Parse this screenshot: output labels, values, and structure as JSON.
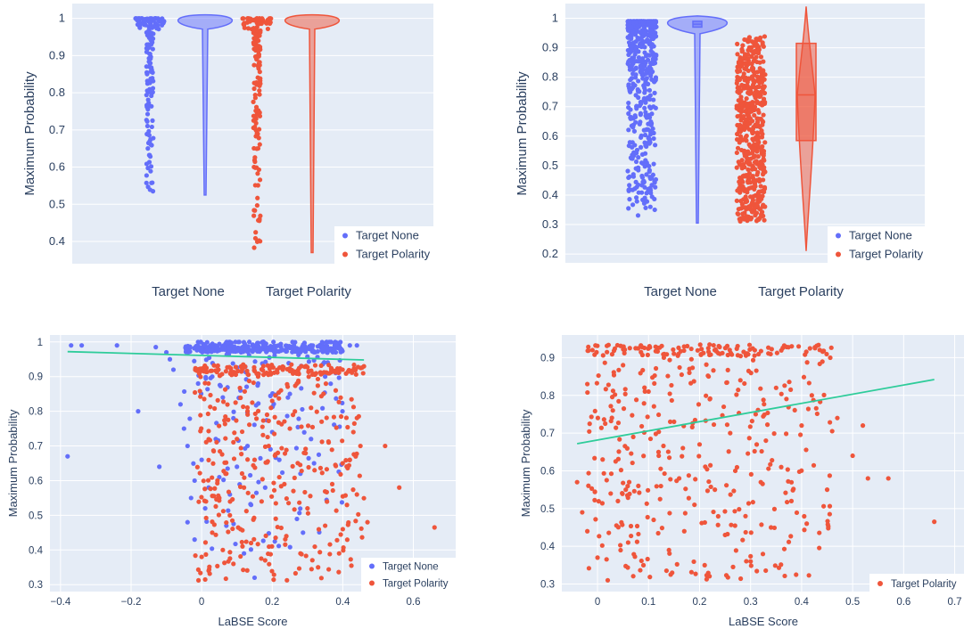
{
  "colors": {
    "target_none": "#636efa",
    "target_polarity": "#ef553b",
    "trend": "#2ecc9a",
    "plot_bg": "#e5ecf6",
    "grid": "#ffffff",
    "legend_bg": "#ffffff"
  },
  "chart_data": [
    {
      "type": "violin",
      "panel": "top-left",
      "ylabel": "Maximum Probability",
      "ylim": [
        0.34,
        1.04
      ],
      "yticks": [
        0.4,
        0.5,
        0.6,
        0.7,
        0.8,
        0.9,
        1
      ],
      "categories": [
        "Target None",
        "Target Polarity"
      ],
      "legend": [
        "Target None",
        "Target Polarity"
      ],
      "legend_position": "bottom-right",
      "series": [
        {
          "name": "Target None",
          "min": 0.525,
          "median": 0.997,
          "max": 1.0,
          "box": false
        },
        {
          "name": "Target Polarity",
          "min": 0.37,
          "median": 0.995,
          "max": 1.0,
          "box": false
        }
      ]
    },
    {
      "type": "violin",
      "panel": "top-right",
      "ylabel": "Maximum Probability",
      "ylim": [
        0.17,
        1.05
      ],
      "yticks": [
        0.2,
        0.3,
        0.4,
        0.5,
        0.6,
        0.7,
        0.8,
        0.9,
        1
      ],
      "categories": [
        "Target None",
        "Target Polarity"
      ],
      "legend": [
        "Target None",
        "Target Polarity"
      ],
      "legend_position": "bottom-right",
      "series": [
        {
          "name": "Target None",
          "min": 0.305,
          "q1": 0.97,
          "median": 0.98,
          "q3": 0.99,
          "max": 0.99,
          "box": true
        },
        {
          "name": "Target Polarity",
          "min": 0.21,
          "q1": 0.585,
          "median": 0.74,
          "q3": 0.915,
          "max": 1.04,
          "box": true
        }
      ]
    },
    {
      "type": "scatter",
      "panel": "bottom-left",
      "xlabel": "LaBSE Score",
      "ylabel": "Maximum Probability",
      "xlim": [
        -0.43,
        0.72
      ],
      "ylim": [
        0.28,
        1.02
      ],
      "xticks": [
        -0.4,
        -0.2,
        0,
        0.2,
        0.4,
        0.6
      ],
      "xtick_labels": [
        "−0.4",
        "−0.2",
        "0",
        "0.2",
        "0.4",
        "0.6"
      ],
      "yticks": [
        0.3,
        0.4,
        0.5,
        0.6,
        0.7,
        0.8,
        0.9,
        1
      ],
      "legend": [
        "Target None",
        "Target Polarity"
      ],
      "legend_position": "bottom-right",
      "trendline": {
        "x": [
          -0.38,
          0.46
        ],
        "y": [
          0.972,
          0.948
        ]
      },
      "series": [
        {
          "name": "Target None",
          "points": [
            [
              -0.38,
              0.67
            ],
            [
              -0.37,
              0.99
            ],
            [
              -0.34,
              0.99
            ],
            [
              -0.24,
              0.99
            ],
            [
              -0.18,
              0.8
            ],
            [
              -0.13,
              0.985
            ],
            [
              -0.12,
              0.64
            ],
            [
              -0.1,
              0.97
            ],
            [
              -0.09,
              0.95
            ],
            [
              -0.08,
              0.92
            ],
            [
              -0.06,
              0.82
            ],
            [
              -0.05,
              0.75
            ],
            [
              -0.04,
              0.7
            ],
            [
              -0.04,
              0.48
            ],
            [
              -0.03,
              0.55
            ],
            [
              -0.02,
              0.6
            ],
            [
              -0.02,
              0.43
            ],
            [
              -0.01,
              0.88
            ],
            [
              0.0,
              0.66
            ],
            [
              0.01,
              0.52
            ],
            [
              0.02,
              0.58
            ],
            [
              0.03,
              0.9
            ],
            [
              0.04,
              0.72
            ],
            [
              0.05,
              0.61
            ],
            [
              0.06,
              0.84
            ],
            [
              0.07,
              0.47
            ],
            [
              0.08,
              0.56
            ],
            [
              0.09,
              0.78
            ],
            [
              0.1,
              0.64
            ],
            [
              0.11,
              0.86
            ],
            [
              0.12,
              0.39
            ],
            [
              0.13,
              0.7
            ],
            [
              0.14,
              0.53
            ],
            [
              0.15,
              0.32
            ],
            [
              0.16,
              0.88
            ],
            [
              0.18,
              0.58
            ],
            [
              0.2,
              0.74
            ],
            [
              0.22,
              0.66
            ],
            [
              0.25,
              0.85
            ],
            [
              0.28,
              0.62
            ],
            [
              0.31,
              0.72
            ],
            [
              0.35,
              0.9
            ],
            [
              0.38,
              0.97
            ],
            [
              0.42,
              0.99
            ],
            [
              0.44,
              0.99
            ]
          ]
        },
        {
          "name": "Target Polarity",
          "points": [
            [
              0.0,
              0.38
            ],
            [
              0.02,
              0.34
            ],
            [
              0.03,
              0.45
            ],
            [
              0.05,
              0.55
            ],
            [
              0.06,
              0.4
            ],
            [
              0.07,
              0.62
            ],
            [
              0.08,
              0.5
            ],
            [
              0.09,
              0.36
            ],
            [
              0.1,
              0.72
            ],
            [
              0.11,
              0.46
            ],
            [
              0.12,
              0.58
            ],
            [
              0.13,
              0.8
            ],
            [
              0.14,
              0.42
            ],
            [
              0.15,
              0.66
            ],
            [
              0.16,
              0.9
            ],
            [
              0.17,
              0.54
            ],
            [
              0.18,
              0.37
            ],
            [
              0.19,
              0.7
            ],
            [
              0.2,
              0.83
            ],
            [
              0.21,
              0.49
            ],
            [
              0.22,
              0.61
            ],
            [
              0.23,
              0.92
            ],
            [
              0.24,
              0.44
            ],
            [
              0.25,
              0.75
            ],
            [
              0.26,
              0.57
            ],
            [
              0.27,
              0.88
            ],
            [
              0.28,
              0.39
            ],
            [
              0.29,
              0.68
            ],
            [
              0.3,
              0.52
            ],
            [
              0.31,
              0.81
            ],
            [
              0.32,
              0.63
            ],
            [
              0.33,
              0.35
            ],
            [
              0.34,
              0.77
            ],
            [
              0.35,
              0.47
            ],
            [
              0.36,
              0.71
            ],
            [
              0.37,
              0.59
            ],
            [
              0.38,
              0.86
            ],
            [
              0.4,
              0.46
            ],
            [
              0.42,
              0.66
            ],
            [
              0.43,
              0.74
            ],
            [
              0.44,
              0.56
            ],
            [
              0.45,
              0.7
            ],
            [
              0.47,
              0.48
            ],
            [
              0.52,
              0.7
            ],
            [
              0.56,
              0.58
            ],
            [
              0.66,
              0.465
            ]
          ]
        }
      ]
    },
    {
      "type": "scatter",
      "panel": "bottom-right",
      "xlabel": "LaBSE Score",
      "ylabel": "Maximum Probability",
      "xlim": [
        -0.07,
        0.72
      ],
      "ylim": [
        0.28,
        0.96
      ],
      "xticks": [
        0,
        0.1,
        0.2,
        0.3,
        0.4,
        0.5,
        0.6,
        0.7
      ],
      "xtick_labels": [
        "0",
        "0.1",
        "0.2",
        "0.3",
        "0.4",
        "0.5",
        "0.6",
        "0.7"
      ],
      "yticks": [
        0.3,
        0.4,
        0.5,
        0.6,
        0.7,
        0.8,
        0.9
      ],
      "legend": [
        "Target Polarity"
      ],
      "legend_position": "bottom-right",
      "trendline": {
        "x": [
          -0.04,
          0.66
        ],
        "y": [
          0.672,
          0.842
        ]
      },
      "series": [
        {
          "name": "Target Polarity",
          "points": [
            [
              -0.04,
              0.57
            ],
            [
              -0.03,
              0.49
            ],
            [
              -0.02,
              0.83
            ],
            [
              -0.02,
              0.44
            ],
            [
              -0.01,
              0.92
            ],
            [
              0.0,
              0.37
            ],
            [
              0.01,
              0.63
            ],
            [
              0.02,
              0.31
            ],
            [
              0.03,
              0.76
            ],
            [
              0.04,
              0.52
            ],
            [
              0.05,
              0.88
            ],
            [
              0.06,
              0.41
            ],
            [
              0.07,
              0.69
            ],
            [
              0.08,
              0.56
            ],
            [
              0.09,
              0.35
            ],
            [
              0.1,
              0.81
            ],
            [
              0.11,
              0.47
            ],
            [
              0.12,
              0.64
            ],
            [
              0.13,
              0.9
            ],
            [
              0.14,
              0.39
            ],
            [
              0.15,
              0.73
            ],
            [
              0.16,
              0.58
            ],
            [
              0.17,
              0.44
            ],
            [
              0.18,
              0.86
            ],
            [
              0.19,
              0.51
            ],
            [
              0.2,
              0.67
            ],
            [
              0.21,
              0.35
            ],
            [
              0.22,
              0.79
            ],
            [
              0.23,
              0.55
            ],
            [
              0.24,
              0.91
            ],
            [
              0.25,
              0.43
            ],
            [
              0.26,
              0.7
            ],
            [
              0.27,
              0.6
            ],
            [
              0.28,
              0.84
            ],
            [
              0.29,
              0.48
            ],
            [
              0.3,
              0.36
            ],
            [
              0.31,
              0.75
            ],
            [
              0.32,
              0.57
            ],
            [
              0.33,
              0.68
            ],
            [
              0.34,
              0.45
            ],
            [
              0.35,
              0.82
            ],
            [
              0.36,
              0.61
            ],
            [
              0.38,
              0.52
            ],
            [
              0.4,
              0.72
            ],
            [
              0.41,
              0.46
            ],
            [
              0.42,
              0.8
            ],
            [
              0.45,
              0.55
            ],
            [
              0.47,
              0.74
            ],
            [
              0.5,
              0.64
            ],
            [
              0.52,
              0.72
            ],
            [
              0.53,
              0.58
            ],
            [
              0.57,
              0.58
            ],
            [
              0.66,
              0.465
            ]
          ]
        }
      ]
    }
  ]
}
